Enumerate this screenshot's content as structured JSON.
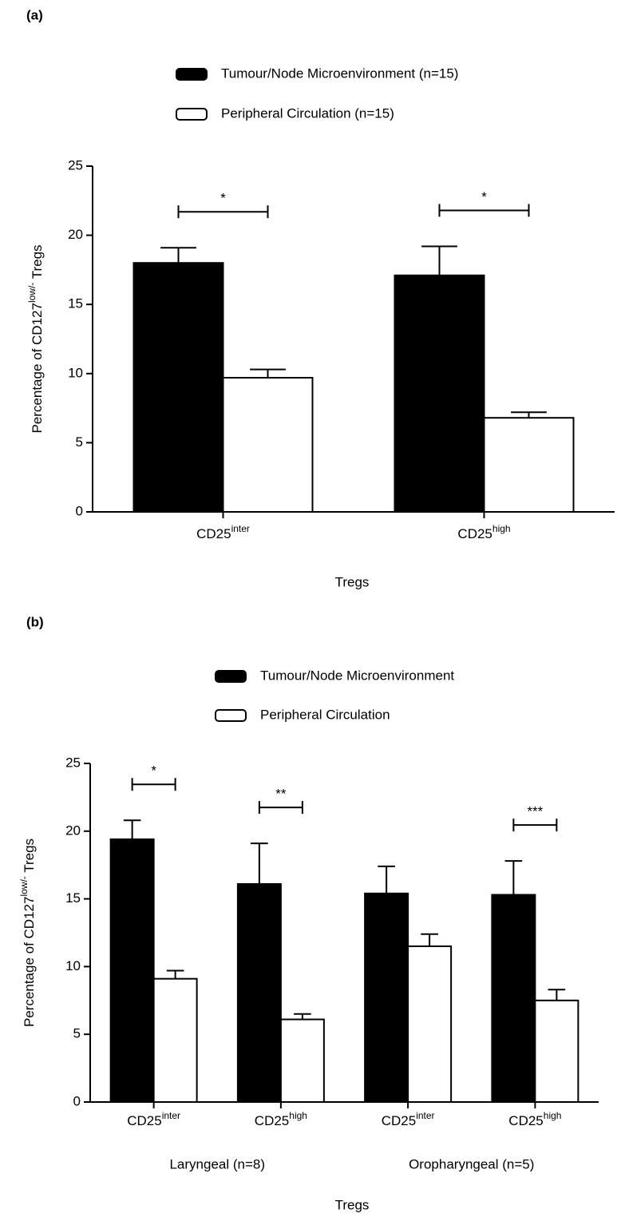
{
  "chart_data": [
    {
      "type": "bar",
      "label": "(a)",
      "categories": [
        [
          "CD25",
          "inter"
        ],
        [
          "CD25",
          "high"
        ]
      ],
      "series": [
        {
          "name": "Tumour/Node Microenvironment (n=15)",
          "color": "#000000",
          "values": [
            18.0,
            17.1
          ],
          "errors": [
            1.1,
            2.1
          ]
        },
        {
          "name": "Peripheral Circulation (n=15)",
          "color": "#ffffff",
          "values": [
            9.7,
            6.8
          ],
          "errors": [
            0.6,
            0.4
          ]
        }
      ],
      "significance": [
        "*",
        "*"
      ],
      "xlabel": "Tregs",
      "ylabel": [
        "Percentage of CD127",
        "low/-",
        " Tregs"
      ],
      "ylim": [
        0,
        25
      ],
      "yticks": [
        0,
        5,
        10,
        15,
        20,
        25
      ]
    },
    {
      "type": "bar",
      "label": "(b)",
      "categories": [
        [
          "CD25",
          "inter"
        ],
        [
          "CD25",
          "high"
        ],
        [
          "CD25",
          "inter"
        ],
        [
          "CD25",
          "high"
        ]
      ],
      "groups": [
        "Laryngeal (n=8)",
        "Oropharyngeal (n=5)"
      ],
      "series": [
        {
          "name": "Tumour/Node Microenvironment",
          "color": "#000000",
          "values": [
            19.4,
            16.1,
            15.4,
            15.3
          ],
          "errors": [
            1.4,
            3.0,
            2.0,
            2.5
          ]
        },
        {
          "name": "Peripheral Circulation",
          "color": "#ffffff",
          "values": [
            9.1,
            6.1,
            11.5,
            7.5
          ],
          "errors": [
            0.6,
            0.4,
            0.9,
            0.8
          ]
        }
      ],
      "significance": [
        "*",
        "**",
        null,
        "***"
      ],
      "xlabel": "Tregs",
      "ylabel": [
        "Percentage of CD127",
        "low/-",
        " Tregs"
      ],
      "ylim": [
        0,
        25
      ],
      "yticks": [
        0,
        5,
        10,
        15,
        20,
        25
      ]
    }
  ]
}
